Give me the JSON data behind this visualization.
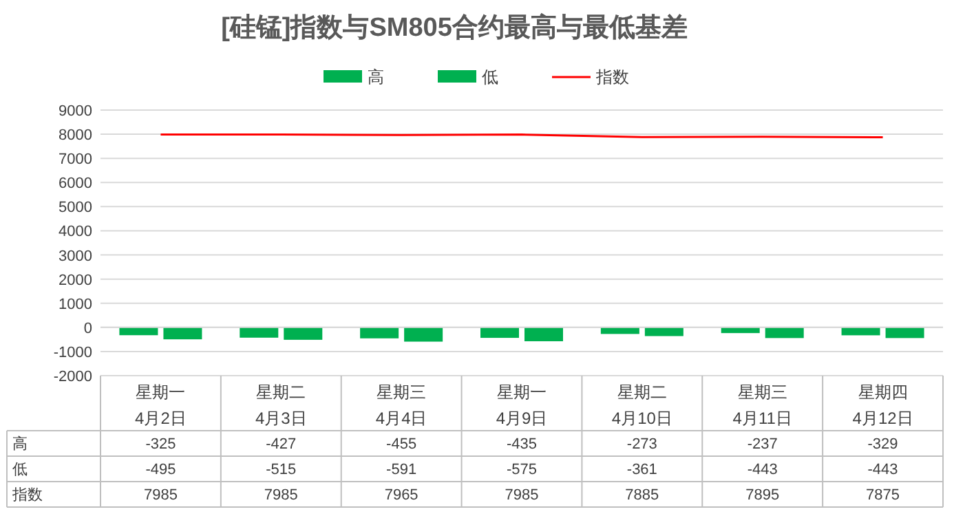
{
  "chart_data": {
    "type": "bar",
    "title": "[硅锰]指数与SM805合约最高与最低基差",
    "categories": [
      "星期一\n4月2日",
      "星期二\n4月3日",
      "星期三\n4月4日",
      "星期一\n4月9日",
      "星期二\n4月10日",
      "星期三\n4月11日",
      "星期四\n4月12日"
    ],
    "series": [
      {
        "name": "高",
        "color": "#00b050",
        "values": [
          -325,
          -427,
          -455,
          -435,
          -273,
          -237,
          -329
        ]
      },
      {
        "name": "低",
        "color": "#00b050",
        "values": [
          -495,
          -515,
          -591,
          -575,
          -361,
          -443,
          -443
        ]
      },
      {
        "name": "指数",
        "type": "line",
        "color": "#ff0000",
        "values": [
          7985,
          7985,
          7965,
          7985,
          7885,
          7895,
          7875
        ]
      }
    ],
    "ylim": [
      -2000,
      9000
    ],
    "yticks": [
      -2000,
      -1000,
      0,
      1000,
      2000,
      3000,
      4000,
      5000,
      6000,
      7000,
      8000,
      9000
    ],
    "grid": "y",
    "legend": "top",
    "data_labels": true,
    "marker": "none"
  }
}
